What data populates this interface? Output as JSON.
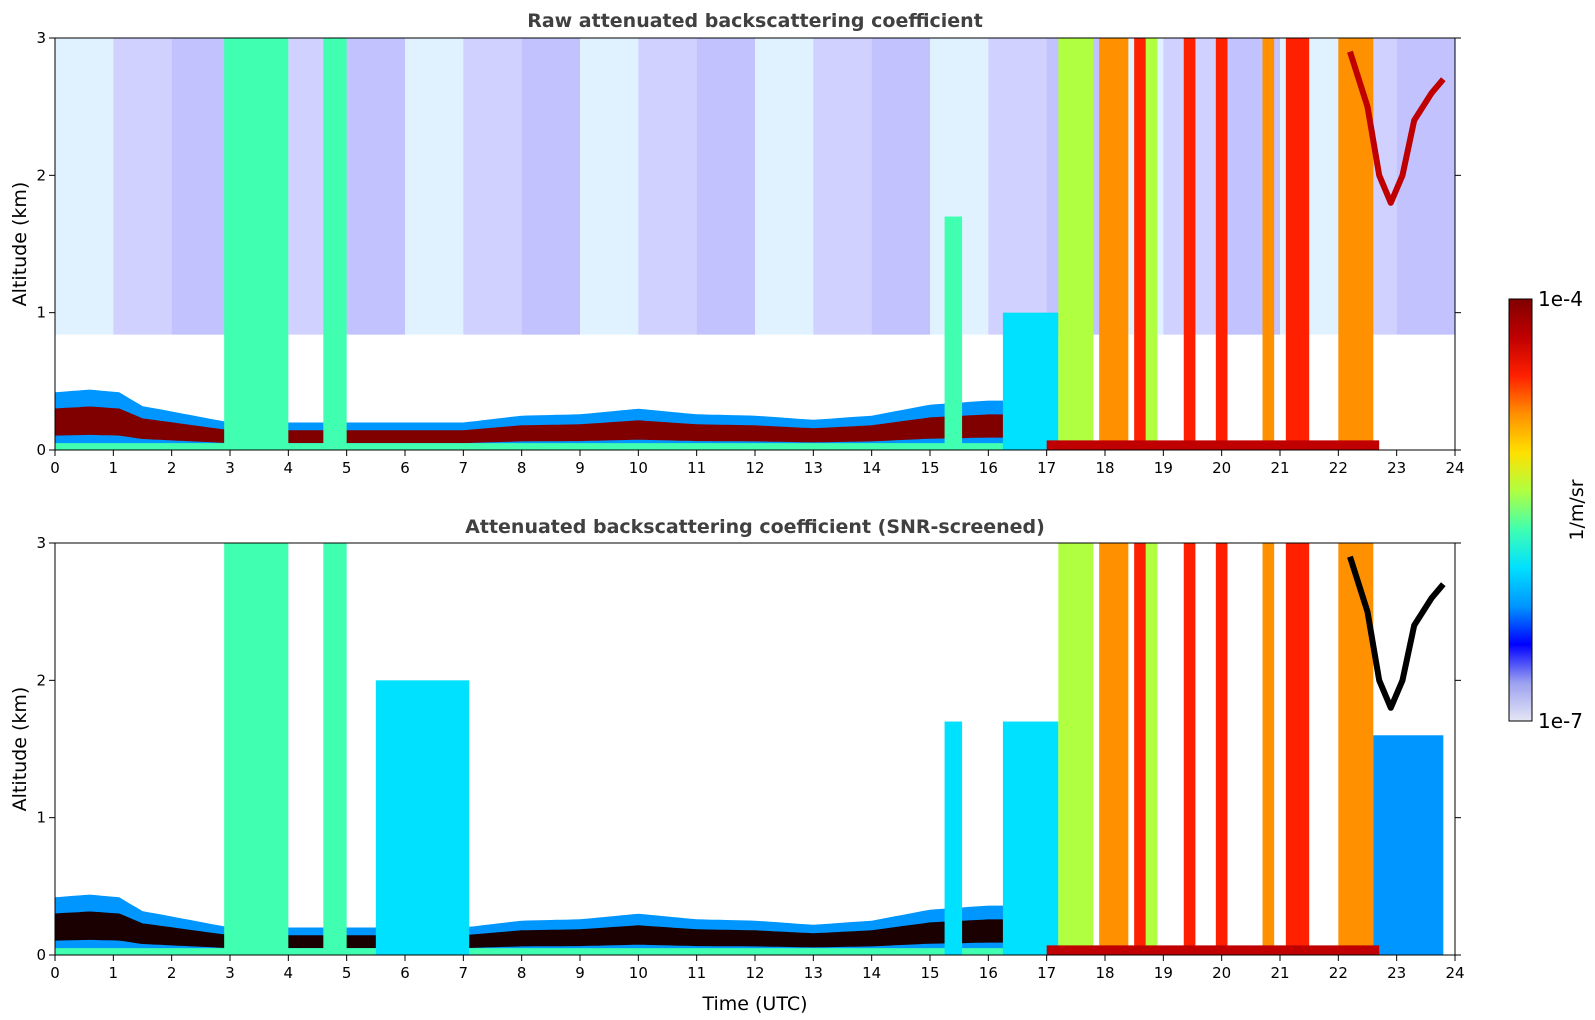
{
  "chart_data": [
    {
      "type": "heatmap",
      "title": "Raw attenuated backscattering coefficient",
      "xlabel": "",
      "ylabel": "Altitude (km)",
      "xlim": [
        0,
        24
      ],
      "ylim": [
        0,
        3
      ],
      "x_ticks": [
        "0",
        "1",
        "2",
        "3",
        "4",
        "5",
        "6",
        "7",
        "8",
        "9",
        "10",
        "11",
        "12",
        "13",
        "14",
        "15",
        "16",
        "17",
        "18",
        "19",
        "20",
        "21",
        "22",
        "23",
        "24"
      ],
      "y_ticks": [
        "0",
        "1",
        "2",
        "3"
      ],
      "layer_top_km": {
        "x": [
          0,
          0.6,
          1.1,
          1.5,
          2.5,
          3,
          5,
          7,
          8,
          9,
          10,
          11,
          12,
          13,
          14,
          15,
          16,
          16.3
        ],
        "y": [
          0.42,
          0.44,
          0.42,
          0.32,
          0.24,
          0.2,
          0.2,
          0.2,
          0.25,
          0.26,
          0.3,
          0.26,
          0.25,
          0.22,
          0.25,
          0.33,
          0.36,
          0.36
        ]
      },
      "plumes": [
        {
          "x_start": 2.9,
          "x_end": 4.0,
          "top_km": 3.0,
          "level": 0.45
        },
        {
          "x_start": 4.6,
          "x_end": 5.0,
          "top_km": 3.0,
          "level": 0.42
        },
        {
          "x_start": 15.25,
          "x_end": 15.55,
          "top_km": 1.7,
          "level": 0.42
        },
        {
          "x_start": 16.25,
          "x_end": 17.2,
          "top_km": 1.0,
          "level": 0.35
        },
        {
          "x_start": 17.2,
          "x_end": 17.8,
          "top_km": 3.0,
          "level": 0.55
        },
        {
          "x_start": 17.9,
          "x_end": 18.4,
          "top_km": 3.0,
          "level": 0.75
        },
        {
          "x_start": 18.5,
          "x_end": 18.7,
          "top_km": 3.0,
          "level": 0.85
        },
        {
          "x_start": 18.7,
          "x_end": 18.9,
          "top_km": 3.0,
          "level": 0.55
        },
        {
          "x_start": 19.35,
          "x_end": 19.55,
          "top_km": 3.0,
          "level": 0.8
        },
        {
          "x_start": 19.9,
          "x_end": 20.1,
          "top_km": 3.0,
          "level": 0.8
        },
        {
          "x_start": 20.7,
          "x_end": 20.9,
          "top_km": 3.0,
          "level": 0.75
        },
        {
          "x_start": 21.1,
          "x_end": 21.5,
          "top_km": 3.0,
          "level": 0.8
        },
        {
          "x_start": 22.0,
          "x_end": 22.6,
          "top_km": 3.0,
          "level": 0.72
        }
      ],
      "high_layer": {
        "x": [
          22.2,
          22.5,
          22.7,
          22.9,
          23.1,
          23.3,
          23.6,
          23.8
        ],
        "y": [
          2.9,
          2.5,
          2.0,
          1.8,
          2.0,
          2.4,
          2.6,
          2.7
        ]
      }
    },
    {
      "type": "heatmap",
      "title": "Attenuated backscattering coefficient (SNR-screened)",
      "xlabel": "Time (UTC)",
      "ylabel": "Altitude (km)",
      "xlim": [
        0,
        24
      ],
      "ylim": [
        0,
        3
      ],
      "x_ticks": [
        "0",
        "1",
        "2",
        "3",
        "4",
        "5",
        "6",
        "7",
        "8",
        "9",
        "10",
        "11",
        "12",
        "13",
        "14",
        "15",
        "16",
        "17",
        "18",
        "19",
        "20",
        "21",
        "22",
        "23",
        "24"
      ],
      "y_ticks": [
        "0",
        "1",
        "2",
        "3"
      ],
      "layer_top_km": {
        "x": [
          0,
          0.6,
          1.1,
          1.5,
          2.5,
          3,
          5,
          7,
          8,
          9,
          10,
          11,
          12,
          13,
          14,
          15,
          16,
          16.3
        ],
        "y": [
          0.42,
          0.44,
          0.42,
          0.32,
          0.24,
          0.2,
          0.2,
          0.2,
          0.25,
          0.26,
          0.3,
          0.26,
          0.25,
          0.22,
          0.25,
          0.33,
          0.36,
          0.36
        ]
      },
      "plumes": [
        {
          "x_start": 2.9,
          "x_end": 4.0,
          "top_km": 3.0,
          "level": 0.45
        },
        {
          "x_start": 4.6,
          "x_end": 5.0,
          "top_km": 3.0,
          "level": 0.42
        },
        {
          "x_start": 5.5,
          "x_end": 7.1,
          "top_km": 2.0,
          "level": 0.4
        },
        {
          "x_start": 15.25,
          "x_end": 15.55,
          "top_km": 1.7,
          "level": 0.38
        },
        {
          "x_start": 16.25,
          "x_end": 17.2,
          "top_km": 1.7,
          "level": 0.32
        },
        {
          "x_start": 17.2,
          "x_end": 17.8,
          "top_km": 3.0,
          "level": 0.55
        },
        {
          "x_start": 17.9,
          "x_end": 18.4,
          "top_km": 3.0,
          "level": 0.75
        },
        {
          "x_start": 18.5,
          "x_end": 18.7,
          "top_km": 3.0,
          "level": 0.85
        },
        {
          "x_start": 18.7,
          "x_end": 18.9,
          "top_km": 3.0,
          "level": 0.55
        },
        {
          "x_start": 19.35,
          "x_end": 19.55,
          "top_km": 3.0,
          "level": 0.8
        },
        {
          "x_start": 19.9,
          "x_end": 20.1,
          "top_km": 3.0,
          "level": 0.8
        },
        {
          "x_start": 20.7,
          "x_end": 20.9,
          "top_km": 3.0,
          "level": 0.75
        },
        {
          "x_start": 21.1,
          "x_end": 21.5,
          "top_km": 3.0,
          "level": 0.8
        },
        {
          "x_start": 22.0,
          "x_end": 22.6,
          "top_km": 3.0,
          "level": 0.72
        },
        {
          "x_start": 22.6,
          "x_end": 23.8,
          "top_km": 1.6,
          "level": 0.3
        }
      ],
      "high_layer": {
        "x": [
          22.2,
          22.5,
          22.7,
          22.9,
          23.1,
          23.3,
          23.6,
          23.8
        ],
        "y": [
          2.9,
          2.5,
          2.0,
          1.8,
          2.0,
          2.4,
          2.6,
          2.7
        ]
      }
    }
  ],
  "colorbar": {
    "label": "1/m/sr",
    "max_label": "1e-4",
    "min_label": "1e-7",
    "colors": [
      "#e6e6f5",
      "#9aa0f0",
      "#0000ff",
      "#0096ff",
      "#00e0ff",
      "#40ffb0",
      "#b0ff40",
      "#ffe000",
      "#ff9000",
      "#ff2000",
      "#c00000",
      "#800000"
    ]
  }
}
